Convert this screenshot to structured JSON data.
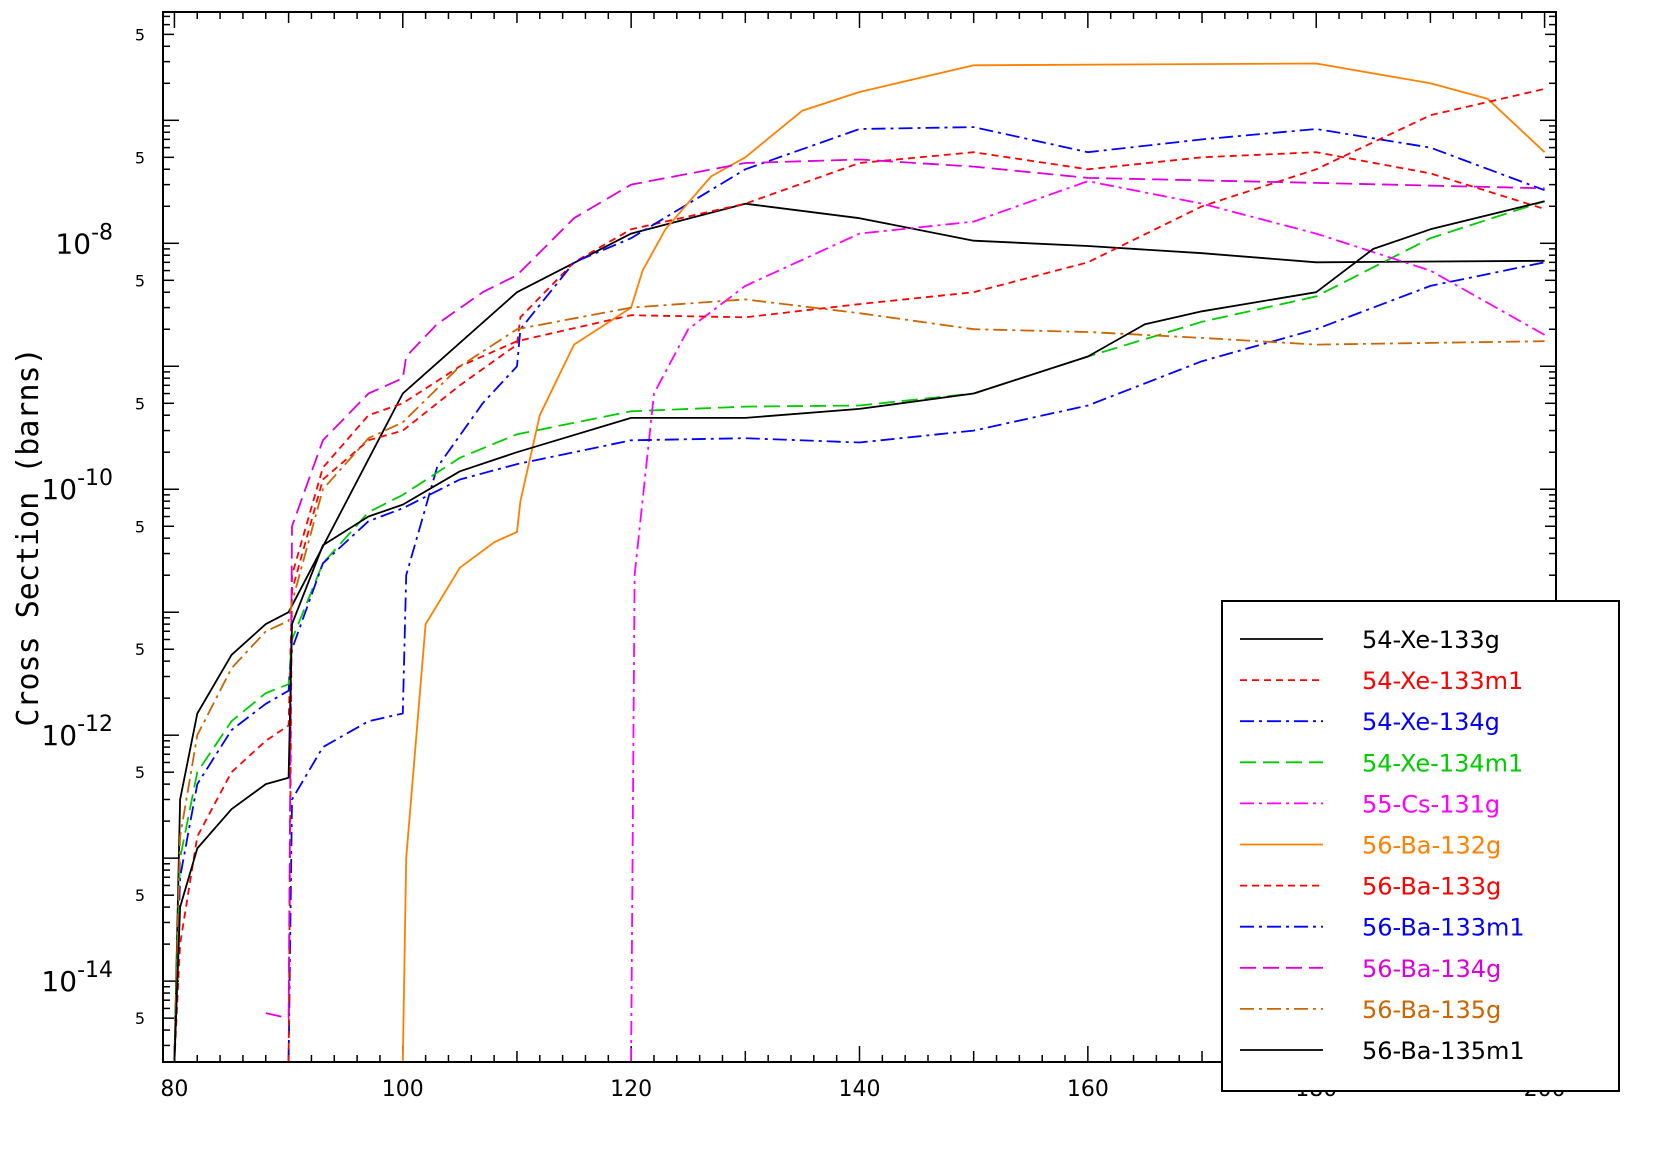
{
  "chart_data": {
    "type": "line",
    "title": "",
    "xlabel": "",
    "ylabel": "Cross Section (barns)",
    "xscale": "linear",
    "yscale": "log",
    "xlim": [
      79,
      201
    ],
    "ylim": [
      2.2e-15,
      7.6e-07
    ],
    "x_ticks": [
      80,
      100,
      120,
      140,
      160,
      180,
      200
    ],
    "y_major_ticks": [
      {
        "value": 1e-14,
        "label": "10",
        "exp": "-14"
      },
      {
        "value": 1e-12,
        "label": "10",
        "exp": "-12"
      },
      {
        "value": 1e-10,
        "label": "10",
        "exp": "-10"
      },
      {
        "value": 1e-08,
        "label": "10",
        "exp": "-8"
      }
    ],
    "y_minor_label": "5",
    "legend_position": "bottom-right",
    "series": [
      {
        "name": "54-Xe-133g",
        "color": "#000000",
        "dash": "solid",
        "points": [
          [
            80,
            2.2e-15
          ],
          [
            80.5,
            3e-13
          ],
          [
            82,
            1.5e-12
          ],
          [
            85,
            4.5e-12
          ],
          [
            88,
            8e-12
          ],
          [
            90,
            1e-11
          ],
          [
            100,
            6e-10
          ],
          [
            110,
            4e-09
          ],
          [
            120,
            1.2e-08
          ],
          [
            130,
            2.1e-08
          ],
          [
            140,
            1.6e-08
          ],
          [
            150,
            1.05e-08
          ],
          [
            160,
            9.5e-09
          ],
          [
            170,
            8.3e-09
          ],
          [
            180,
            7e-09
          ],
          [
            200,
            7.2e-09
          ]
        ]
      },
      {
        "name": "54-Xe-133m1",
        "color": "#ff0000",
        "dash": "dash",
        "points": [
          [
            80,
            2.2e-15
          ],
          [
            80.5,
            2e-14
          ],
          [
            82,
            1.5e-13
          ],
          [
            85,
            5e-13
          ],
          [
            88,
            9e-13
          ],
          [
            90,
            1.2e-12
          ],
          [
            90.3,
            1.5e-11
          ],
          [
            93,
            1.2e-10
          ],
          [
            97,
            2.5e-10
          ],
          [
            100,
            3e-10
          ],
          [
            105,
            7e-10
          ],
          [
            110,
            1.5e-09
          ],
          [
            110.3,
            2.5e-09
          ],
          [
            115,
            7e-09
          ],
          [
            120,
            1.3e-08
          ],
          [
            130,
            2.1e-08
          ],
          [
            140,
            4.5e-08
          ],
          [
            150,
            5.5e-08
          ],
          [
            160,
            4e-08
          ],
          [
            170,
            5e-08
          ],
          [
            180,
            5.5e-08
          ],
          [
            190,
            3.7e-08
          ],
          [
            200,
            1.9e-08
          ]
        ]
      },
      {
        "name": "54-Xe-134g",
        "color": "#0000ff",
        "dash": "dashdot",
        "points": [
          [
            90,
            2.2e-15
          ],
          [
            90.3,
            3e-13
          ],
          [
            93,
            8e-13
          ],
          [
            97,
            1.3e-12
          ],
          [
            100,
            1.5e-12
          ],
          [
            100.3,
            2e-11
          ],
          [
            103,
            1.5e-10
          ],
          [
            107,
            5e-10
          ],
          [
            110,
            1e-09
          ],
          [
            110.3,
            2e-09
          ],
          [
            115,
            7e-09
          ],
          [
            120,
            1.1e-08
          ],
          [
            130,
            4e-08
          ],
          [
            140,
            8.5e-08
          ],
          [
            150,
            8.8e-08
          ],
          [
            160,
            5.5e-08
          ],
          [
            170,
            7e-08
          ],
          [
            180,
            8.5e-08
          ],
          [
            190,
            6e-08
          ],
          [
            200,
            2.7e-08
          ]
        ]
      },
      {
        "name": "54-Xe-134m1",
        "color": "#00cc00",
        "dash": "longdash",
        "points": [
          [
            80,
            2.2e-15
          ],
          [
            80.5,
            1e-13
          ],
          [
            82,
            5e-13
          ],
          [
            85,
            1.3e-12
          ],
          [
            88,
            2.2e-12
          ],
          [
            90,
            2.6e-12
          ],
          [
            90.3,
            6e-12
          ],
          [
            93,
            2.5e-11
          ],
          [
            97,
            6.5e-11
          ],
          [
            100,
            9e-11
          ],
          [
            105,
            1.8e-10
          ],
          [
            110,
            2.8e-10
          ],
          [
            120,
            4.3e-10
          ],
          [
            130,
            4.7e-10
          ],
          [
            140,
            4.8e-10
          ],
          [
            150,
            6e-10
          ],
          [
            160,
            1.2e-09
          ],
          [
            170,
            2.3e-09
          ],
          [
            180,
            3.7e-09
          ],
          [
            190,
            1.1e-08
          ],
          [
            200,
            2.2e-08
          ]
        ]
      },
      {
        "name": "55-Cs-131g",
        "color": "#ff00ff",
        "dash": "dashdot",
        "points": [
          [
            120,
            2.2e-15
          ],
          [
            120.3,
            2e-11
          ],
          [
            122,
            6e-10
          ],
          [
            125,
            2e-09
          ],
          [
            130,
            4.5e-09
          ],
          [
            140,
            1.2e-08
          ],
          [
            150,
            1.5e-08
          ],
          [
            160,
            3.2e-08
          ],
          [
            170,
            2.1e-08
          ],
          [
            180,
            1.2e-08
          ],
          [
            190,
            6e-09
          ],
          [
            200,
            1.8e-09
          ]
        ]
      },
      {
        "name": "56-Ba-132g",
        "color": "#ff8000",
        "dash": "solid",
        "points": [
          [
            100,
            2.2e-15
          ],
          [
            100.3,
            1e-13
          ],
          [
            102,
            8e-12
          ],
          [
            105,
            2.3e-11
          ],
          [
            108,
            3.7e-11
          ],
          [
            110,
            4.5e-11
          ],
          [
            110.3,
            8e-11
          ],
          [
            112,
            4e-10
          ],
          [
            115,
            1.5e-09
          ],
          [
            120,
            3e-09
          ],
          [
            121,
            6e-09
          ],
          [
            123,
            1.3e-08
          ],
          [
            127,
            3.5e-08
          ],
          [
            130,
            5e-08
          ],
          [
            135,
            1.2e-07
          ],
          [
            140,
            1.7e-07
          ],
          [
            150,
            2.8e-07
          ],
          [
            180,
            2.9e-07
          ],
          [
            190,
            2e-07
          ],
          [
            195,
            1.5e-07
          ],
          [
            200,
            5.5e-08
          ]
        ]
      },
      {
        "name": "56-Ba-133g",
        "color": "#ff0000",
        "dash": "dash",
        "points": [
          [
            90,
            2.2e-15
          ],
          [
            90.3,
            2e-11
          ],
          [
            93,
            1.5e-10
          ],
          [
            97,
            4e-10
          ],
          [
            100,
            5e-10
          ],
          [
            105,
            1e-09
          ],
          [
            110,
            1.6e-09
          ],
          [
            120,
            2.6e-09
          ],
          [
            130,
            2.5e-09
          ],
          [
            140,
            3.2e-09
          ],
          [
            150,
            4e-09
          ],
          [
            160,
            7e-09
          ],
          [
            170,
            2e-08
          ],
          [
            180,
            4e-08
          ],
          [
            190,
            1.1e-07
          ],
          [
            200,
            1.8e-07
          ]
        ]
      },
      {
        "name": "56-Ba-133m1",
        "color": "#0000ff",
        "dash": "dashdot",
        "points": [
          [
            80,
            2.2e-15
          ],
          [
            80.5,
            7e-14
          ],
          [
            82,
            4e-13
          ],
          [
            85,
            1.1e-12
          ],
          [
            88,
            1.8e-12
          ],
          [
            90,
            2.3e-12
          ],
          [
            90.3,
            5e-12
          ],
          [
            93,
            2.5e-11
          ],
          [
            97,
            5.5e-11
          ],
          [
            100,
            7e-11
          ],
          [
            105,
            1.2e-10
          ],
          [
            110,
            1.6e-10
          ],
          [
            120,
            2.5e-10
          ],
          [
            130,
            2.6e-10
          ],
          [
            140,
            2.4e-10
          ],
          [
            150,
            3e-10
          ],
          [
            160,
            4.8e-10
          ],
          [
            170,
            1.1e-09
          ],
          [
            180,
            2e-09
          ],
          [
            190,
            4.5e-09
          ],
          [
            200,
            7e-09
          ]
        ]
      },
      {
        "name": "56-Ba-134g",
        "color": "#dd00dd",
        "dash": "longdash",
        "points": [
          [
            88,
            5.5e-15
          ],
          [
            90,
            5e-15
          ],
          [
            90.3,
            5e-11
          ],
          [
            93,
            2.5e-10
          ],
          [
            97,
            6e-10
          ],
          [
            100,
            8e-10
          ],
          [
            100.3,
            1.2e-09
          ],
          [
            103,
            2.2e-09
          ],
          [
            107,
            4e-09
          ],
          [
            110,
            5.5e-09
          ],
          [
            115,
            1.6e-08
          ],
          [
            120,
            3e-08
          ],
          [
            130,
            4.5e-08
          ],
          [
            140,
            4.8e-08
          ],
          [
            150,
            4.2e-08
          ],
          [
            160,
            3.4e-08
          ],
          [
            180,
            3.1e-08
          ],
          [
            200,
            2.8e-08
          ]
        ]
      },
      {
        "name": "56-Ba-135g",
        "color": "#cc6600",
        "dash": "dashdot",
        "points": [
          [
            80,
            2.2e-15
          ],
          [
            80.5,
            1.5e-13
          ],
          [
            82,
            1e-12
          ],
          [
            85,
            3.5e-12
          ],
          [
            88,
            7e-12
          ],
          [
            90,
            8.5e-12
          ],
          [
            90.3,
            1.2e-11
          ],
          [
            93,
            1e-10
          ],
          [
            97,
            2.6e-10
          ],
          [
            100,
            3.5e-10
          ],
          [
            105,
            1e-09
          ],
          [
            110,
            2e-09
          ],
          [
            120,
            3e-09
          ],
          [
            130,
            3.5e-09
          ],
          [
            140,
            2.7e-09
          ],
          [
            150,
            2e-09
          ],
          [
            160,
            1.9e-09
          ],
          [
            170,
            1.7e-09
          ],
          [
            180,
            1.5e-09
          ],
          [
            200,
            1.6e-09
          ]
        ]
      },
      {
        "name": "56-Ba-135m1",
        "color": "#000000",
        "dash": "solid",
        "points": [
          [
            80,
            2.2e-15
          ],
          [
            80.5,
            4e-14
          ],
          [
            82,
            1.2e-13
          ],
          [
            85,
            2.5e-13
          ],
          [
            88,
            4e-13
          ],
          [
            90,
            4.5e-13
          ],
          [
            90.3,
            8e-12
          ],
          [
            93,
            3.5e-11
          ],
          [
            97,
            6e-11
          ],
          [
            100,
            7.5e-11
          ],
          [
            105,
            1.4e-10
          ],
          [
            110,
            2e-10
          ],
          [
            120,
            3.8e-10
          ],
          [
            130,
            3.8e-10
          ],
          [
            140,
            4.5e-10
          ],
          [
            150,
            6e-10
          ],
          [
            160,
            1.2e-09
          ],
          [
            165,
            2.2e-09
          ],
          [
            170,
            2.8e-09
          ],
          [
            180,
            4e-09
          ],
          [
            185,
            9e-09
          ],
          [
            190,
            1.3e-08
          ],
          [
            200,
            2.2e-08
          ]
        ]
      }
    ]
  }
}
